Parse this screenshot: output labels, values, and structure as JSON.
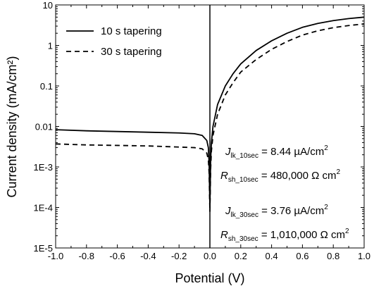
{
  "chart_data": {
    "type": "line",
    "xlabel": "Potential (V)",
    "ylabel": "Current density (mA/cm²)",
    "xlim": [
      -1.0,
      1.0
    ],
    "ylim": [
      1e-05,
      10
    ],
    "yscale": "log",
    "x_ticks": [
      "-1.0",
      "-0.8",
      "-0.6",
      "-0.4",
      "-0.2",
      "0.0",
      "0.2",
      "0.4",
      "0.6",
      "0.8",
      "1.0"
    ],
    "y_ticks": [
      "1E-5",
      "1E-4",
      "1E-3",
      "0.01",
      "0.1",
      "1",
      "10"
    ],
    "grid": false,
    "legend_position": "top-left",
    "series": [
      {
        "name": "10 s tapering",
        "style": "solid",
        "color": "#000000",
        "x": [
          -1.0,
          -0.8,
          -0.6,
          -0.4,
          -0.2,
          -0.1,
          -0.05,
          -0.02,
          -0.01,
          -0.005,
          0.0,
          0.005,
          0.01,
          0.02,
          0.05,
          0.1,
          0.15,
          0.2,
          0.3,
          0.4,
          0.5,
          0.6,
          0.7,
          0.8,
          0.9,
          1.0
        ],
        "y": [
          0.0083,
          0.0078,
          0.0075,
          0.0072,
          0.0069,
          0.0066,
          0.006,
          0.0045,
          0.003,
          0.0012,
          0.0001,
          0.0015,
          0.004,
          0.01,
          0.035,
          0.1,
          0.2,
          0.35,
          0.75,
          1.3,
          2.0,
          2.8,
          3.5,
          4.1,
          4.6,
          5.0
        ]
      },
      {
        "name": "30 s tapering",
        "style": "dashed",
        "color": "#000000",
        "x": [
          -1.0,
          -0.8,
          -0.6,
          -0.4,
          -0.2,
          -0.1,
          -0.05,
          -0.02,
          -0.01,
          -0.005,
          0.0,
          0.005,
          0.01,
          0.02,
          0.05,
          0.1,
          0.15,
          0.2,
          0.3,
          0.4,
          0.5,
          0.6,
          0.7,
          0.8,
          0.9,
          1.0
        ],
        "y": [
          0.0037,
          0.0035,
          0.0034,
          0.0033,
          0.0031,
          0.003,
          0.0028,
          0.0022,
          0.0015,
          0.0007,
          8e-05,
          0.0009,
          0.0025,
          0.006,
          0.02,
          0.06,
          0.12,
          0.22,
          0.45,
          0.8,
          1.25,
          1.8,
          2.3,
          2.75,
          3.1,
          3.4
        ]
      }
    ],
    "annotations": [
      {
        "symbol": "J",
        "subscript": "lk_10sec",
        "text": " = 8.44 µA/cm",
        "superscript": "2"
      },
      {
        "symbol": "R",
        "subscript": "sh_10sec",
        "text": " = 480,000 Ω cm",
        "superscript": "2"
      },
      {
        "symbol": "J",
        "subscript": "lk_30sec",
        "text": " = 3.76 µA/cm",
        "superscript": "2"
      },
      {
        "symbol": "R",
        "subscript": "sh_30sec",
        "text": " = 1,010,000 Ω cm",
        "superscript": "2"
      }
    ]
  }
}
